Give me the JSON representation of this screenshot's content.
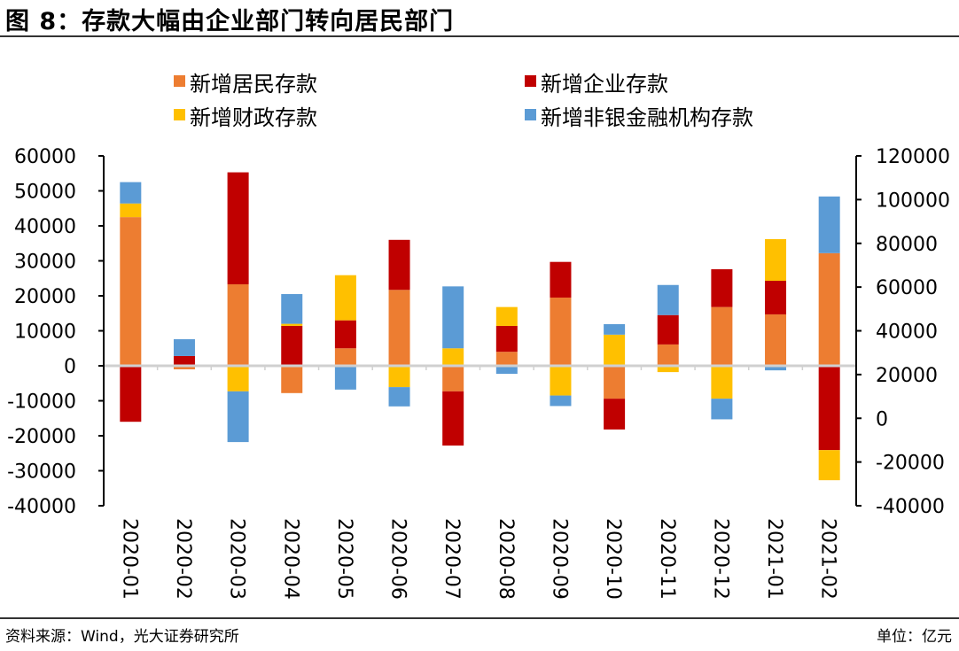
{
  "header": {
    "title": "图 8：存款大幅由企业部门转向居民部门"
  },
  "footer": {
    "source": "资料来源：Wind，光大证券研究所",
    "unit": "单位：亿元"
  },
  "chart_data": {
    "type": "bar",
    "stacked": true,
    "title": "存款大幅由企业部门转向居民部门",
    "xlabel": "",
    "ylabel": "",
    "categories": [
      "2020-01",
      "2020-02",
      "2020-03",
      "2020-04",
      "2020-05",
      "2020-06",
      "2020-07",
      "2020-08",
      "2020-09",
      "2020-10",
      "2020-11",
      "2020-12",
      "2021-01",
      "2021-02"
    ],
    "series": [
      {
        "name": "新增居民存款",
        "color": "#ED7D31",
        "values": [
          42500,
          -1000,
          23300,
          -7800,
          5000,
          21700,
          -7300,
          4000,
          19500,
          -9400,
          6100,
          16800,
          14700,
          32200
        ]
      },
      {
        "name": "新增企业存款",
        "color": "#C00000",
        "values": [
          -16000,
          2800,
          32000,
          11400,
          8000,
          14300,
          -15500,
          7400,
          10200,
          -8800,
          8400,
          10800,
          9600,
          -24100
        ]
      },
      {
        "name": "新增财政存款",
        "color": "#FFC000",
        "values": [
          3900,
          0,
          -7300,
          600,
          12900,
          -6100,
          5000,
          5400,
          -8500,
          8900,
          -1800,
          -9400,
          11900,
          -8600
        ]
      },
      {
        "name": "新增非银金融机构存款",
        "color": "#5B9BD5",
        "values": [
          6100,
          4800,
          -14500,
          8500,
          -6800,
          -5500,
          17700,
          -2300,
          -3000,
          3000,
          8600,
          -5900,
          -1300,
          16200
        ]
      }
    ],
    "y_left": {
      "ylim": [
        -40000,
        60000
      ],
      "ticks": [
        60000,
        50000,
        40000,
        30000,
        20000,
        10000,
        0,
        -10000,
        -20000,
        -30000,
        -40000
      ]
    },
    "y_right": {
      "ylim": [
        -40000,
        120000
      ],
      "ticks": [
        120000,
        100000,
        80000,
        60000,
        40000,
        20000,
        0,
        -20000,
        -40000
      ]
    },
    "legend": {
      "position": "top",
      "columns": 2
    },
    "grid": false
  }
}
